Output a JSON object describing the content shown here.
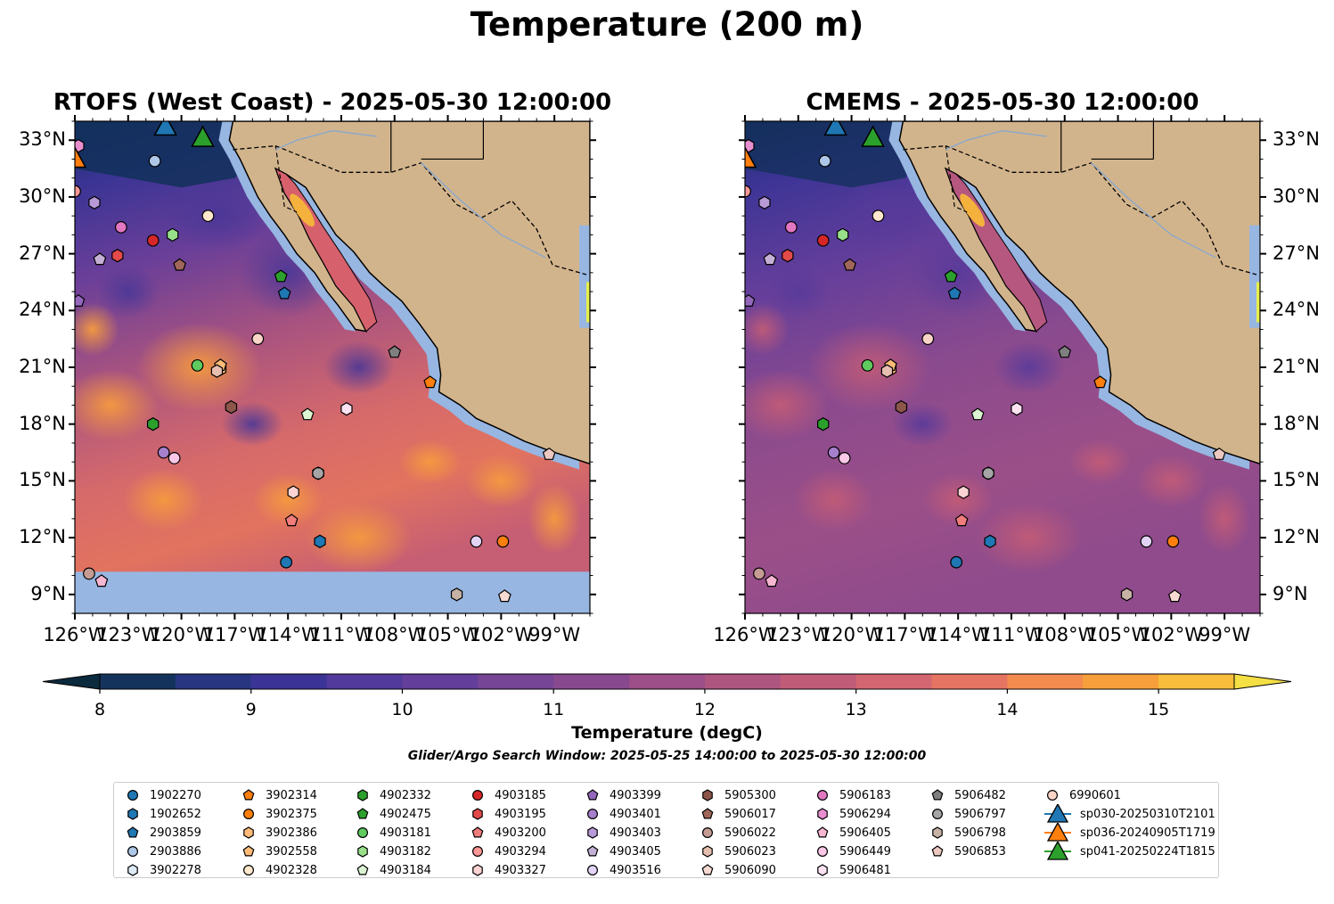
{
  "figure": {
    "title": "Temperature (200 m)",
    "search_window": "Glider/Argo Search Window: 2025-05-25 14:00:00 to 2025-05-30 12:00:00"
  },
  "panels": [
    {
      "title": "RTOFS (West Coast) - 2025-05-30 12:00:00",
      "model": "RTOFS"
    },
    {
      "title": "CMEMS - 2025-05-30 12:00:00",
      "model": "CMEMS"
    }
  ],
  "axes": {
    "lon_ticks": [
      "126°W",
      "123°W",
      "120°W",
      "117°W",
      "114°W",
      "111°W",
      "108°W",
      "105°W",
      "102°W",
      "99°W"
    ],
    "lat_ticks": [
      "33°N",
      "30°N",
      "27°N",
      "24°N",
      "21°N",
      "18°N",
      "15°N",
      "12°N",
      "9°N"
    ],
    "lon_range": [
      -126,
      -97
    ],
    "lat_range": [
      8,
      34
    ]
  },
  "colorbar": {
    "label": "Temperature (degC)",
    "ticks": [
      "8",
      "9",
      "10",
      "11",
      "12",
      "13",
      "14",
      "15"
    ],
    "range": [
      8,
      15.5
    ],
    "extend": "both",
    "colors": [
      "#0b2a3e",
      "#13335c",
      "#283681",
      "#3b3496",
      "#513a9b",
      "#643e9b",
      "#764596",
      "#88498f",
      "#9c4f88",
      "#ae5580",
      "#c05c78",
      "#d36670",
      "#e57462",
      "#f38a4e",
      "#f7a03b",
      "#f8bd3a",
      "#f4df45"
    ]
  },
  "colors": {
    "land": "#d2b48c",
    "shelf": "#97b6e1"
  },
  "legend": [
    {
      "name": "1902270",
      "color": "#1f77b4",
      "marker": "circle"
    },
    {
      "name": "1902652",
      "color": "#1f77b4",
      "marker": "hexagon"
    },
    {
      "name": "2903859",
      "color": "#1f77b4",
      "marker": "pentagon"
    },
    {
      "name": "2903886",
      "color": "#aec7e8",
      "marker": "circle"
    },
    {
      "name": "3902278",
      "color": "#deebf7",
      "marker": "hexagon"
    },
    {
      "name": "3902314",
      "color": "#ff7f0e",
      "marker": "pentagon"
    },
    {
      "name": "3902375",
      "color": "#ff7f0e",
      "marker": "circle"
    },
    {
      "name": "3902386",
      "color": "#ffbb78",
      "marker": "hexagon"
    },
    {
      "name": "3902558",
      "color": "#ffbb78",
      "marker": "pentagon"
    },
    {
      "name": "4902328",
      "color": "#ffe8cc",
      "marker": "circle"
    },
    {
      "name": "4902332",
      "color": "#2ca02c",
      "marker": "hexagon"
    },
    {
      "name": "4902475",
      "color": "#2ca02c",
      "marker": "pentagon"
    },
    {
      "name": "4903181",
      "color": "#5fcb5f",
      "marker": "circle"
    },
    {
      "name": "4903182",
      "color": "#98df8a",
      "marker": "hexagon"
    },
    {
      "name": "4903184",
      "color": "#dcf5d2",
      "marker": "pentagon"
    },
    {
      "name": "4903185",
      "color": "#d62728",
      "marker": "circle"
    },
    {
      "name": "4903195",
      "color": "#e34a4a",
      "marker": "hexagon"
    },
    {
      "name": "4903200",
      "color": "#f07c7c",
      "marker": "pentagon"
    },
    {
      "name": "4903294",
      "color": "#ff9896",
      "marker": "circle"
    },
    {
      "name": "4903327",
      "color": "#fdd3d3",
      "marker": "hexagon"
    },
    {
      "name": "4903399",
      "color": "#9467bd",
      "marker": "pentagon"
    },
    {
      "name": "4903401",
      "color": "#a680cc",
      "marker": "circle"
    },
    {
      "name": "4903403",
      "color": "#b89ad7",
      "marker": "hexagon"
    },
    {
      "name": "4903405",
      "color": "#c5b0d5",
      "marker": "pentagon"
    },
    {
      "name": "4903516",
      "color": "#e3d3f5",
      "marker": "circle"
    },
    {
      "name": "5905300",
      "color": "#8c564b",
      "marker": "hexagon"
    },
    {
      "name": "5906017",
      "color": "#a0675a",
      "marker": "pentagon"
    },
    {
      "name": "5906022",
      "color": "#c49c94",
      "marker": "circle"
    },
    {
      "name": "5906023",
      "color": "#e7bfb0",
      "marker": "hexagon"
    },
    {
      "name": "5906090",
      "color": "#f7dbd2",
      "marker": "pentagon"
    },
    {
      "name": "5906183",
      "color": "#e377c2",
      "marker": "circle"
    },
    {
      "name": "5906294",
      "color": "#e98fd0",
      "marker": "hexagon"
    },
    {
      "name": "5906405",
      "color": "#f7b6d2",
      "marker": "pentagon"
    },
    {
      "name": "5906449",
      "color": "#fbc8e8",
      "marker": "circle"
    },
    {
      "name": "5906481",
      "color": "#fde2f2",
      "marker": "hexagon"
    },
    {
      "name": "5906482",
      "color": "#7f7f7f",
      "marker": "pentagon"
    },
    {
      "name": "5906797",
      "color": "#a5a5a5",
      "marker": "circle"
    },
    {
      "name": "5906798",
      "color": "#c7b2a6",
      "marker": "hexagon"
    },
    {
      "name": "5906853",
      "color": "#ecc8c0",
      "marker": "pentagon"
    },
    {
      "name": "6990601",
      "color": "#fbd4c8",
      "marker": "circle"
    },
    {
      "name": "sp030-20250310T2101",
      "color": "#1f77b4",
      "marker": "triangle"
    },
    {
      "name": "sp036-20240905T1719",
      "color": "#ff7f0e",
      "marker": "triangle"
    },
    {
      "name": "sp041-20250224T1815",
      "color": "#2ca02c",
      "marker": "triangle"
    }
  ],
  "observations": [
    {
      "id": "1902270",
      "lon": -114.1,
      "lat": 10.7
    },
    {
      "id": "1902652",
      "lon": -112.2,
      "lat": 11.8
    },
    {
      "id": "2903859",
      "lon": -114.2,
      "lat": 24.9
    },
    {
      "id": "2903886",
      "lon": -121.5,
      "lat": 31.9
    },
    {
      "id": "3902278",
      "lon": -112.3,
      "lat": 15.4
    },
    {
      "id": "3902314",
      "lon": -106.0,
      "lat": 20.2
    },
    {
      "id": "3902375",
      "lon": -101.9,
      "lat": 11.8
    },
    {
      "id": "3902386",
      "lon": -117.8,
      "lat": 20.9
    },
    {
      "id": "3902558",
      "lon": -117.8,
      "lat": 21.1
    },
    {
      "id": "4902328",
      "lon": -118.5,
      "lat": 29.0
    },
    {
      "id": "4902332",
      "lon": -121.6,
      "lat": 18.0
    },
    {
      "id": "4902475",
      "lon": -114.4,
      "lat": 25.8
    },
    {
      "id": "4903181",
      "lon": -119.1,
      "lat": 21.1
    },
    {
      "id": "4903182",
      "lon": -120.5,
      "lat": 28.0
    },
    {
      "id": "4903184",
      "lon": -112.9,
      "lat": 18.5
    },
    {
      "id": "4903185",
      "lon": -121.6,
      "lat": 27.7
    },
    {
      "id": "4903195",
      "lon": -123.6,
      "lat": 26.9
    },
    {
      "id": "4903200",
      "lon": -113.8,
      "lat": 12.9
    },
    {
      "id": "4903294",
      "lon": -126.0,
      "lat": 30.3
    },
    {
      "id": "4903327",
      "lon": -113.7,
      "lat": 14.4
    },
    {
      "id": "4903399",
      "lon": -125.8,
      "lat": 24.5
    },
    {
      "id": "4903401",
      "lon": -121.0,
      "lat": 16.5
    },
    {
      "id": "4903403",
      "lon": -124.9,
      "lat": 29.7
    },
    {
      "id": "4903405",
      "lon": -124.6,
      "lat": 26.7
    },
    {
      "id": "4903516",
      "lon": -103.4,
      "lat": 11.8
    },
    {
      "id": "5905300",
      "lon": -117.2,
      "lat": 18.9
    },
    {
      "id": "5906017",
      "lon": -120.1,
      "lat": 26.4
    },
    {
      "id": "5906022",
      "lon": -125.2,
      "lat": 10.1
    },
    {
      "id": "5906023",
      "lon": -118.0,
      "lat": 20.8
    },
    {
      "id": "5906090",
      "lon": -101.8,
      "lat": 8.9
    },
    {
      "id": "5906183",
      "lon": -123.4,
      "lat": 28.4
    },
    {
      "id": "5906294",
      "lon": -125.8,
      "lat": 32.7
    },
    {
      "id": "5906405",
      "lon": -124.5,
      "lat": 9.7
    },
    {
      "id": "5906449",
      "lon": -120.4,
      "lat": 16.2
    },
    {
      "id": "5906481",
      "lon": -110.7,
      "lat": 18.8
    },
    {
      "id": "5906482",
      "lon": -108.0,
      "lat": 21.8
    },
    {
      "id": "5906797",
      "lon": -112.3,
      "lat": 15.4
    },
    {
      "id": "5906798",
      "lon": -104.5,
      "lat": 9.0
    },
    {
      "id": "5906853",
      "lon": -99.3,
      "lat": 16.4
    },
    {
      "id": "6990601",
      "lon": -115.7,
      "lat": 22.5
    },
    {
      "id": "sp030-20250310T2101",
      "lon": -120.9,
      "lat": 33.7
    },
    {
      "id": "sp036-20240905T1719",
      "lon": -126.0,
      "lat": 32.0
    },
    {
      "id": "sp041-20250224T1815",
      "lon": -118.8,
      "lat": 33.1
    }
  ]
}
